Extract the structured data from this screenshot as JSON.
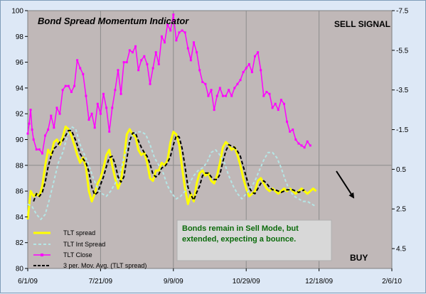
{
  "chart_data": {
    "type": "line",
    "title": "Bond Spread Momentum Indicator",
    "signal_top": "SELL SIGNAL",
    "signal_bottom": "BUY",
    "annotation_lines": [
      "Bonds remain in Sell Mode, but",
      "extended, expecting a bounce."
    ],
    "x_ticks": [
      "6/1/09",
      "7/21/09",
      "9/9/09",
      "10/29/09",
      "12/18/09",
      "2/6/10"
    ],
    "x_range_days": [
      0,
      250
    ],
    "y_left_range": [
      80,
      100
    ],
    "y_left_ticks": [
      "80",
      "82",
      "84",
      "86",
      "88",
      "90",
      "92",
      "94",
      "96",
      "98",
      "100"
    ],
    "y_right_range": [
      5.5,
      -7.5
    ],
    "y_right_ticks": [
      "-7.5",
      "-5.5",
      "-3.5",
      "-1.5",
      "0.5",
      "2.5",
      "4.5"
    ],
    "grid": "vertical at each x tick, horizontal at 88",
    "legend_placement": "bottom-left",
    "colors": {
      "plot_bg": "#c0b8b8",
      "tlt_spread": "#ffff00",
      "tlt_int_spread": "#b4e6e6",
      "tlt_close": "#ff00ff",
      "mov_avg": "#000000",
      "annotation_box": "#d8d8d8"
    },
    "series": [
      {
        "name": "TLT spread",
        "axis": "left",
        "x": [
          0,
          2,
          4,
          6,
          8,
          10,
          12,
          14,
          16,
          18,
          20,
          22,
          24,
          26,
          28,
          30,
          32,
          34,
          36,
          38,
          40,
          42,
          44,
          46,
          48,
          50,
          52,
          54,
          56,
          58,
          60,
          62,
          64,
          66,
          68,
          70,
          72,
          74,
          76,
          78,
          80,
          82,
          84,
          86,
          88,
          90,
          92,
          94,
          96,
          98,
          100,
          102,
          104,
          106,
          108,
          110,
          112,
          114,
          116,
          118,
          120,
          122,
          124,
          126,
          128,
          130,
          132,
          134,
          136,
          138,
          140,
          142,
          144,
          146,
          148,
          150,
          152,
          154,
          156,
          158,
          160,
          162,
          164,
          166,
          168,
          170,
          172,
          174,
          176,
          178,
          180,
          182,
          184,
          186,
          188,
          190,
          192,
          194,
          196,
          198
        ],
        "y": [
          83.8,
          86.0,
          85.6,
          85.8,
          85.6,
          86.4,
          88.0,
          89.2,
          88.8,
          89.8,
          90.0,
          89.6,
          90.2,
          91.0,
          90.8,
          90.3,
          89.6,
          88.8,
          88.2,
          88.6,
          87.8,
          86.0,
          85.2,
          85.8,
          86.6,
          87.0,
          87.8,
          88.8,
          89.2,
          88.0,
          87.0,
          86.2,
          86.8,
          88.4,
          90.4,
          90.8,
          90.4,
          90.2,
          89.2,
          88.8,
          89.0,
          88.2,
          87.0,
          86.8,
          87.6,
          87.6,
          88.2,
          88.0,
          88.4,
          89.8,
          90.6,
          90.4,
          89.6,
          87.8,
          86.2,
          85.0,
          85.8,
          85.2,
          86.6,
          87.4,
          87.6,
          87.2,
          87.4,
          86.8,
          86.6,
          87.2,
          88.2,
          89.4,
          89.8,
          89.6,
          89.2,
          89.4,
          88.8,
          88.0,
          87.0,
          86.2,
          85.6,
          85.8,
          86.0,
          86.8,
          87.0,
          86.6,
          86.2,
          86.0,
          86.2,
          86.0,
          85.8,
          86.0,
          86.2,
          86.0,
          86.2,
          86.0,
          85.8,
          86.0,
          86.2,
          86.0,
          85.8,
          86.0,
          86.2,
          86.0
        ]
      },
      {
        "name": "TLT Int Spread",
        "axis": "left",
        "x": [
          0,
          3,
          6,
          9,
          12,
          15,
          18,
          21,
          24,
          27,
          30,
          33,
          36,
          39,
          42,
          45,
          48,
          51,
          54,
          57,
          60,
          63,
          66,
          69,
          72,
          75,
          78,
          81,
          84,
          87,
          90,
          93,
          96,
          99,
          102,
          105,
          108,
          111,
          114,
          117,
          120,
          123,
          126,
          129,
          132,
          135,
          138,
          141,
          144,
          147,
          150,
          153,
          156,
          159,
          162,
          165,
          168,
          171,
          174,
          177,
          180,
          183,
          186,
          189,
          192,
          195,
          198
        ],
        "y": [
          85.0,
          84.8,
          84.2,
          83.8,
          84.2,
          85.4,
          86.8,
          88.2,
          89.0,
          90.2,
          91.0,
          90.8,
          89.6,
          88.8,
          88.0,
          87.0,
          86.2,
          85.8,
          85.6,
          86.0,
          86.6,
          87.2,
          88.6,
          89.6,
          90.4,
          90.6,
          90.6,
          90.4,
          89.6,
          88.6,
          88.0,
          87.4,
          86.4,
          85.8,
          85.4,
          85.6,
          86.0,
          86.6,
          87.2,
          87.6,
          87.8,
          88.2,
          89.0,
          89.2,
          88.8,
          88.2,
          87.2,
          86.4,
          85.8,
          85.4,
          85.8,
          86.2,
          86.8,
          87.6,
          88.4,
          89.0,
          89.0,
          88.6,
          87.8,
          86.8,
          86.0,
          85.6,
          85.4,
          85.2,
          85.2,
          85.0,
          84.8
        ]
      },
      {
        "name": "TLT Close",
        "axis": "right",
        "x": [
          0,
          1,
          2,
          3,
          4,
          6,
          8,
          10,
          12,
          14,
          16,
          18,
          20,
          22,
          24,
          26,
          28,
          30,
          32,
          34,
          36,
          38,
          40,
          42,
          44,
          46,
          48,
          50,
          52,
          54,
          56,
          58,
          60,
          62,
          64,
          66,
          68,
          70,
          72,
          74,
          76,
          78,
          80,
          82,
          84,
          86,
          88,
          90,
          92,
          94,
          96,
          98,
          100,
          102,
          104,
          106,
          108,
          110,
          112,
          114,
          116,
          118,
          120,
          122,
          124,
          126,
          128,
          130,
          132,
          134,
          136,
          138,
          140,
          142,
          144,
          146,
          148,
          150,
          152,
          154,
          156,
          158,
          160,
          162,
          164,
          166,
          168,
          170,
          172,
          174,
          176,
          178,
          180,
          182,
          184,
          186,
          188,
          190,
          192,
          194
        ],
        "y": [
          -1.3,
          -1.8,
          -2.5,
          -1.5,
          -1.0,
          -0.5,
          -0.5,
          -0.3,
          -1.2,
          -1.5,
          -2.2,
          -1.6,
          -2.6,
          -2.3,
          -3.5,
          -3.7,
          -3.7,
          -3.4,
          -3.7,
          -5.0,
          -4.6,
          -4.3,
          -3.2,
          -2.0,
          -2.3,
          -1.6,
          -2.8,
          -2.3,
          -3.3,
          -2.6,
          -1.4,
          -2.6,
          -3.5,
          -4.5,
          -3.3,
          -4.9,
          -4.9,
          -5.5,
          -5.4,
          -5.7,
          -4.5,
          -5.0,
          -5.2,
          -4.8,
          -3.8,
          -4.6,
          -5.4,
          -4.8,
          -6.2,
          -5.9,
          -6.8,
          -6.5,
          -7.3,
          -6.0,
          -6.4,
          -6.5,
          -6.4,
          -5.6,
          -5.0,
          -5.9,
          -5.4,
          -4.5,
          -3.9,
          -3.8,
          -3.2,
          -3.5,
          -2.5,
          -3.2,
          -3.6,
          -3.2,
          -3.2,
          -3.5,
          -3.2,
          -3.6,
          -3.8,
          -4.0,
          -4.4,
          -4.6,
          -4.8,
          -4.4,
          -5.2,
          -5.4,
          -4.5,
          -3.2,
          -3.4,
          -3.3,
          -2.6,
          -2.8,
          -2.5,
          -3.0,
          -2.8,
          -1.9,
          -1.4,
          -1.5,
          -1.0,
          -0.8,
          -0.7,
          -0.6,
          -0.9,
          -0.7
        ]
      },
      {
        "name": "3 per. Mov. Avg. (TLT spread)",
        "axis": "left",
        "x": [
          4,
          6,
          8,
          10,
          12,
          14,
          16,
          18,
          20,
          22,
          24,
          26,
          28,
          30,
          32,
          34,
          36,
          38,
          40,
          42,
          44,
          46,
          48,
          50,
          52,
          54,
          56,
          58,
          60,
          62,
          64,
          66,
          68,
          70,
          72,
          74,
          76,
          78,
          80,
          82,
          84,
          86,
          88,
          90,
          92,
          94,
          96,
          98,
          100,
          102,
          104,
          106,
          108,
          110,
          112,
          114,
          116,
          118,
          120,
          122,
          124,
          126,
          128,
          130,
          132,
          134,
          136,
          138,
          140,
          142,
          144,
          146,
          148,
          150,
          152,
          154,
          156,
          158,
          160,
          162,
          164,
          166,
          168,
          170,
          172,
          174,
          176,
          178,
          180,
          182,
          184,
          186,
          188,
          190
        ],
        "y": [
          85.2,
          85.8,
          85.6,
          85.9,
          86.7,
          87.9,
          88.7,
          89.3,
          89.5,
          89.8,
          89.9,
          90.3,
          90.7,
          90.7,
          90.2,
          89.6,
          88.9,
          88.5,
          88.2,
          87.5,
          86.3,
          85.7,
          85.9,
          86.5,
          87.1,
          87.9,
          88.6,
          88.7,
          88.1,
          87.1,
          86.7,
          87.1,
          88.5,
          89.9,
          90.5,
          90.5,
          89.9,
          89.4,
          89.0,
          88.7,
          88.1,
          87.3,
          87.1,
          87.3,
          87.8,
          87.9,
          88.2,
          88.7,
          89.6,
          90.3,
          90.2,
          89.3,
          87.9,
          86.3,
          85.7,
          85.3,
          85.9,
          86.4,
          87.2,
          87.4,
          87.4,
          87.1,
          86.9,
          86.9,
          87.3,
          88.3,
          89.1,
          89.6,
          89.5,
          89.4,
          89.1,
          88.7,
          87.9,
          87.1,
          86.3,
          85.9,
          85.8,
          86.2,
          86.6,
          86.8,
          86.6,
          86.3,
          86.1,
          86.1,
          86.0,
          85.9,
          86.0,
          86.1,
          86.1,
          86.1,
          86.0,
          85.9,
          86.0,
          86.1
        ]
      }
    ],
    "legend": [
      {
        "label": "TLT spread",
        "series": 0
      },
      {
        "label": "TLT Int Spread",
        "series": 1
      },
      {
        "label": "TLT Close",
        "series": 2
      },
      {
        "label": "3 per. Mov. Avg. (TLT spread)",
        "series": 3
      }
    ]
  }
}
